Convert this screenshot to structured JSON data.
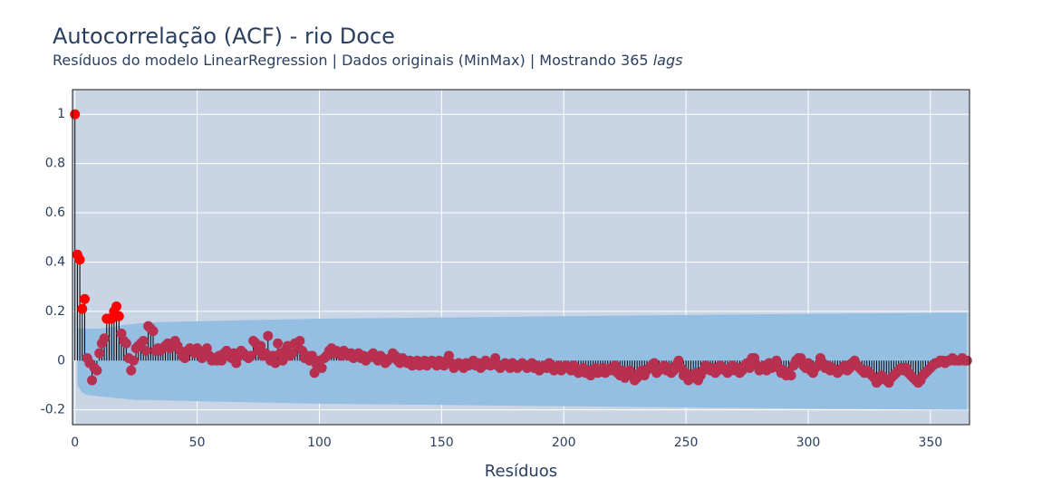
{
  "chart_data": {
    "type": "acf",
    "title": "Autocorrelação (ACF) - rio Doce",
    "subtitle": [
      "Resíduos do modelo LinearRegression | Dados originais (MinMax) | Mostrando 365",
      "lags"
    ],
    "x_label": "Resíduos",
    "xlim": [
      -1,
      366
    ],
    "ylim": [
      -0.26,
      1.1
    ],
    "xticks": [
      0,
      50,
      100,
      150,
      200,
      250,
      300,
      350
    ],
    "yticks": [
      -0.2,
      0,
      0.2,
      0.4,
      0.6,
      0.8,
      1
    ],
    "grid": true,
    "color": "#b8304f",
    "significant_color": "#ff0000",
    "stem_color": "#000000",
    "band_color": "#94bfe3",
    "band_x": [
      1,
      3,
      5,
      10,
      15,
      20,
      25,
      30,
      50,
      100,
      150,
      200,
      250,
      300,
      365
    ],
    "band_upper": [
      0.13,
      0.13,
      0.13,
      0.13,
      0.135,
      0.145,
      0.15,
      0.155,
      0.16,
      0.17,
      0.175,
      0.18,
      0.185,
      0.19,
      0.195
    ],
    "band_lower": [
      -0.1,
      -0.13,
      -0.14,
      -0.145,
      -0.15,
      -0.155,
      -0.16,
      -0.16,
      -0.165,
      -0.175,
      -0.18,
      -0.185,
      -0.19,
      -0.195,
      -0.2
    ],
    "x": [
      0,
      1,
      2,
      3,
      4,
      5,
      6,
      7,
      8,
      9,
      10,
      11,
      12,
      13,
      14,
      15,
      16,
      17,
      18,
      19,
      20,
      21,
      22,
      23,
      24,
      25,
      26,
      27,
      28,
      29,
      30,
      31,
      32,
      33,
      34,
      35,
      36,
      37,
      38,
      39,
      40,
      41,
      42,
      43,
      44,
      45,
      46,
      47,
      48,
      49,
      50,
      51,
      52,
      53,
      54,
      55,
      56,
      57,
      58,
      59,
      60,
      61,
      62,
      63,
      64,
      65,
      66,
      67,
      68,
      69,
      70,
      71,
      72,
      73,
      74,
      75,
      76,
      77,
      78,
      79,
      80,
      81,
      82,
      83,
      84,
      85,
      86,
      87,
      88,
      89,
      90,
      91,
      92,
      93,
      94,
      95,
      96,
      97,
      98,
      99,
      100,
      101,
      102,
      103,
      104,
      105,
      106,
      107,
      108,
      109,
      110,
      111,
      112,
      113,
      114,
      115,
      116,
      117,
      118,
      119,
      120,
      121,
      122,
      123,
      124,
      125,
      126,
      127,
      128,
      129,
      130,
      131,
      132,
      133,
      134,
      135,
      136,
      137,
      138,
      139,
      140,
      141,
      142,
      143,
      144,
      145,
      146,
      147,
      148,
      149,
      150,
      151,
      152,
      153,
      154,
      155,
      156,
      157,
      158,
      159,
      160,
      161,
      162,
      163,
      164,
      165,
      166,
      167,
      168,
      169,
      170,
      171,
      172,
      173,
      174,
      175,
      176,
      177,
      178,
      179,
      180,
      181,
      182,
      183,
      184,
      185,
      186,
      187,
      188,
      189,
      190,
      191,
      192,
      193,
      194,
      195,
      196,
      197,
      198,
      199,
      200,
      201,
      202,
      203,
      204,
      205,
      206,
      207,
      208,
      209,
      210,
      211,
      212,
      213,
      214,
      215,
      216,
      217,
      218,
      219,
      220,
      221,
      222,
      223,
      224,
      225,
      226,
      227,
      228,
      229,
      230,
      231,
      232,
      233,
      234,
      235,
      236,
      237,
      238,
      239,
      240,
      241,
      242,
      243,
      244,
      245,
      246,
      247,
      248,
      249,
      250,
      251,
      252,
      253,
      254,
      255,
      256,
      257,
      258,
      259,
      260,
      261,
      262,
      263,
      264,
      265,
      266,
      267,
      268,
      269,
      270,
      271,
      272,
      273,
      274,
      275,
      276,
      277,
      278,
      279,
      280,
      281,
      282,
      283,
      284,
      285,
      286,
      287,
      288,
      289,
      290,
      291,
      292,
      293,
      294,
      295,
      296,
      297,
      298,
      299,
      300,
      301,
      302,
      303,
      304,
      305,
      306,
      307,
      308,
      309,
      310,
      311,
      312,
      313,
      314,
      315,
      316,
      317,
      318,
      319,
      320,
      321,
      322,
      323,
      324,
      325,
      326,
      327,
      328,
      329,
      330,
      331,
      332,
      333,
      334,
      335,
      336,
      337,
      338,
      339,
      340,
      341,
      342,
      343,
      344,
      345,
      346,
      347,
      348,
      349,
      350,
      351,
      352,
      353,
      354,
      355,
      356,
      357,
      358,
      359,
      360,
      361,
      362,
      363,
      364,
      365
    ],
    "values": [
      1,
      0.43,
      0.41,
      0.21,
      0.25,
      0.01,
      -0.01,
      -0.08,
      -0.03,
      -0.04,
      0.03,
      0.07,
      0.09,
      0.17,
      0.17,
      0.17,
      0.2,
      0.22,
      0.18,
      0.11,
      0.08,
      0.07,
      0.01,
      -0.04,
      0.0,
      0.05,
      0.06,
      0.07,
      0.08,
      0.04,
      0.14,
      0.13,
      0.12,
      0.04,
      0.05,
      0.04,
      0.05,
      0.06,
      0.07,
      0.05,
      0.06,
      0.08,
      0.06,
      0.04,
      0.02,
      0.01,
      0.04,
      0.05,
      0.04,
      0.03,
      0.05,
      0.04,
      0.01,
      0.03,
      0.05,
      0.02,
      0.0,
      0.01,
      0.0,
      0.02,
      0.0,
      0.03,
      0.04,
      0.02,
      0.01,
      0.03,
      -0.01,
      0.02,
      0.04,
      0.03,
      0.02,
      0.01,
      0.02,
      0.08,
      0.07,
      0.04,
      0.06,
      0.02,
      0.03,
      0.1,
      0.0,
      0.02,
      -0.01,
      0.07,
      0.03,
      0.0,
      0.04,
      0.06,
      0.02,
      0.03,
      0.07,
      0.06,
      0.08,
      0.04,
      0.01,
      0.02,
      0.0,
      0.02,
      -0.05,
      -0.02,
      0.0,
      -0.03,
      0.01,
      0.02,
      0.04,
      0.05,
      0.03,
      0.04,
      0.03,
      0.02,
      0.04,
      0.03,
      0.02,
      0.03,
      0.01,
      0.02,
      0.03,
      0.01,
      0.02,
      0.0,
      0.01,
      0.02,
      0.03,
      0.01,
      0.0,
      0.02,
      0.01,
      -0.01,
      0.0,
      0.01,
      0.03,
      0.02,
      0.0,
      -0.01,
      0.01,
      0.0,
      -0.01,
      0.0,
      -0.02,
      -0.01,
      0.0,
      -0.02,
      -0.01,
      0.0,
      -0.02,
      -0.01,
      0.0,
      -0.01,
      -0.02,
      0.0,
      -0.01,
      -0.02,
      0.0,
      0.02,
      -0.01,
      -0.03,
      -0.02,
      -0.01,
      -0.02,
      -0.03,
      -0.01,
      -0.02,
      -0.01,
      0.0,
      -0.02,
      -0.01,
      -0.03,
      -0.02,
      0.0,
      -0.01,
      -0.02,
      -0.01,
      0.01,
      -0.02,
      -0.03,
      -0.02,
      -0.01,
      -0.02,
      -0.03,
      -0.01,
      -0.02,
      -0.03,
      -0.02,
      -0.01,
      -0.02,
      -0.03,
      -0.02,
      -0.01,
      -0.03,
      -0.02,
      -0.04,
      -0.03,
      -0.02,
      -0.03,
      -0.01,
      -0.02,
      -0.04,
      -0.03,
      -0.02,
      -0.04,
      -0.03,
      -0.02,
      -0.03,
      -0.04,
      -0.02,
      -0.03,
      -0.05,
      -0.04,
      -0.03,
      -0.05,
      -0.04,
      -0.06,
      -0.04,
      -0.03,
      -0.05,
      -0.04,
      -0.03,
      -0.05,
      -0.04,
      -0.03,
      -0.04,
      -0.02,
      -0.05,
      -0.06,
      -0.04,
      -0.07,
      -0.05,
      -0.04,
      -0.06,
      -0.08,
      -0.07,
      -0.05,
      -0.04,
      -0.06,
      -0.04,
      -0.03,
      -0.02,
      -0.01,
      -0.05,
      -0.04,
      -0.03,
      -0.02,
      -0.04,
      -0.03,
      -0.05,
      -0.04,
      -0.02,
      0.0,
      -0.03,
      -0.06,
      -0.05,
      -0.08,
      -0.06,
      -0.07,
      -0.05,
      -0.08,
      -0.06,
      -0.04,
      -0.02,
      -0.03,
      -0.04,
      -0.03,
      -0.05,
      -0.04,
      -0.02,
      -0.03,
      -0.04,
      -0.05,
      -0.03,
      -0.02,
      -0.04,
      -0.03,
      -0.05,
      -0.04,
      -0.02,
      -0.01,
      -0.03,
      0.01,
      0.01,
      -0.02,
      -0.04,
      -0.03,
      -0.02,
      -0.04,
      -0.01,
      -0.03,
      -0.02,
      0.0,
      -0.03,
      -0.05,
      -0.04,
      -0.06,
      -0.05,
      -0.06,
      -0.02,
      0.0,
      0.01,
      0.01,
      -0.02,
      -0.03,
      -0.01,
      -0.04,
      -0.05,
      -0.03,
      -0.02,
      0.01,
      -0.01,
      -0.03,
      -0.02,
      -0.04,
      -0.03,
      -0.04,
      -0.05,
      -0.04,
      -0.03,
      -0.02,
      -0.04,
      -0.03,
      -0.01,
      0.0,
      -0.02,
      -0.03,
      -0.04,
      -0.05,
      -0.04,
      -0.05,
      -0.06,
      -0.07,
      -0.09,
      -0.08,
      -0.06,
      -0.07,
      -0.08,
      -0.09,
      -0.07,
      -0.06,
      -0.05,
      -0.04,
      -0.03,
      -0.04,
      -0.03,
      -0.05,
      -0.06,
      -0.07,
      -0.08,
      -0.09,
      -0.08,
      -0.06,
      -0.05,
      -0.04,
      -0.03,
      -0.02,
      -0.01,
      -0.01,
      0.0,
      0.0,
      -0.01,
      0.0,
      0.0,
      0.01,
      0.0,
      0.0,
      0.0,
      0.01,
      0.0,
      0.0
    ]
  }
}
